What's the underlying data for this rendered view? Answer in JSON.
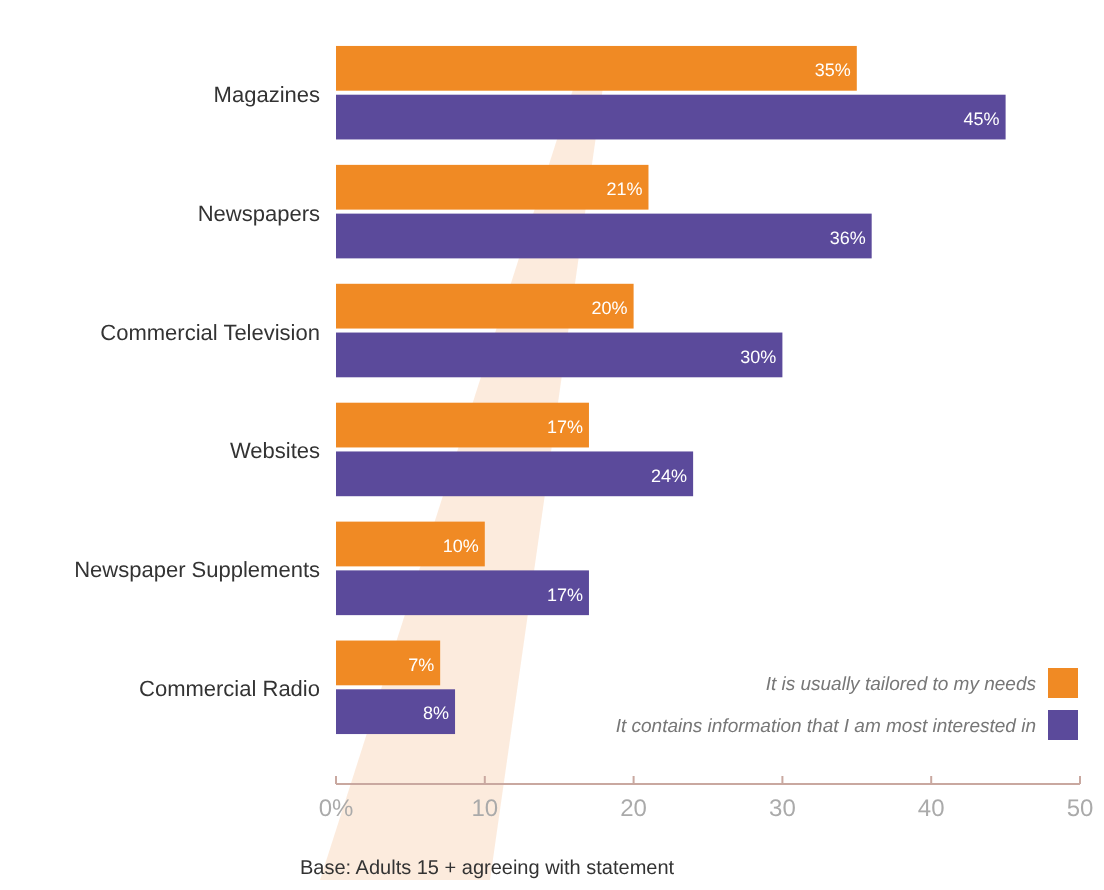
{
  "chart_data": {
    "type": "bar",
    "orientation": "horizontal",
    "categories": [
      "Magazines",
      "Newspapers",
      "Commercial Television",
      "Websites",
      "Newspaper Supplements",
      "Commercial Radio"
    ],
    "series": [
      {
        "name": "It is usually tailored to my needs",
        "color": "#f08a24",
        "values": [
          35,
          21,
          20,
          17,
          10,
          7
        ],
        "value_labels": [
          "35%",
          "21%",
          "20%",
          "17%",
          "10%",
          "7%"
        ]
      },
      {
        "name": "It contains information that I am most interested in",
        "color": "#5b4a9b",
        "values": [
          45,
          36,
          30,
          24,
          17,
          8
        ],
        "value_labels": [
          "45%",
          "36%",
          "30%",
          "24%",
          "17%",
          "8%"
        ]
      }
    ],
    "xlim": [
      0,
      50
    ],
    "xticks": [
      {
        "value": 0,
        "label": "0%"
      },
      10,
      20,
      30,
      40,
      50
    ],
    "legend": "bottom right",
    "grid": false,
    "annotations": [
      "Base: Adults 15 + agreeing with statement"
    ]
  }
}
